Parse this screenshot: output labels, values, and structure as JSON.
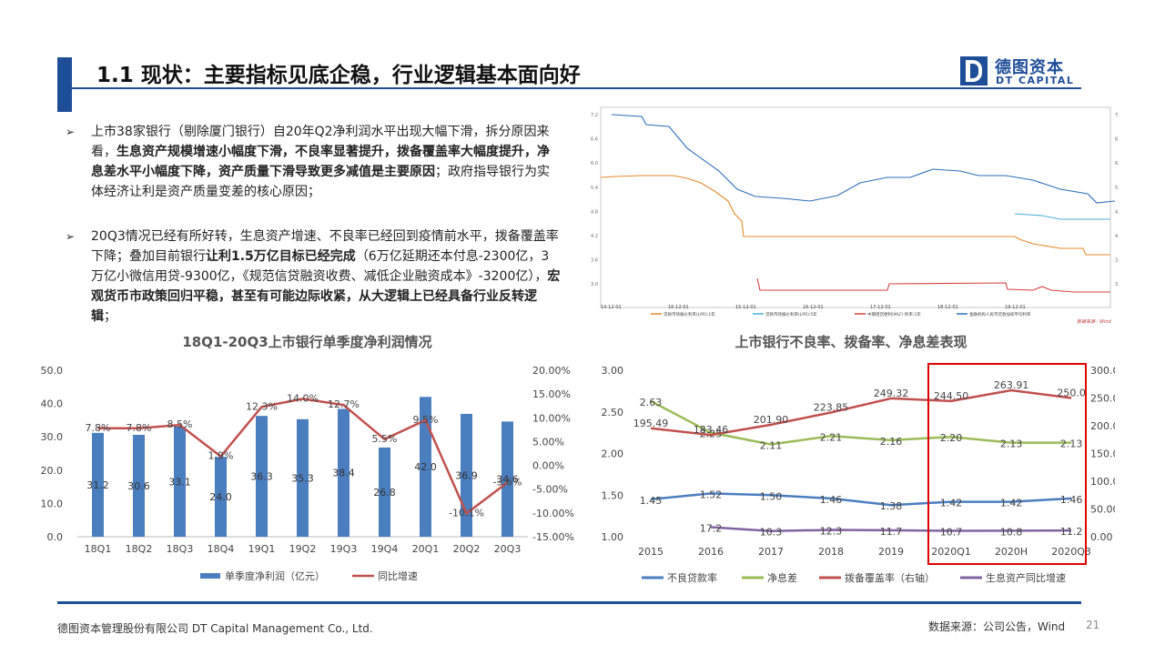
{
  "header": {
    "title": "1.1 现状：主要指标见底企稳，行业逻辑基本面向好",
    "logo_cn": "德图资本",
    "logo_en": "DT CAPITAL"
  },
  "bullets": [
    {
      "parts": [
        {
          "t": "上市38家银行（剔除厦门银行）自20年Q2净利润水平出现大幅下滑，拆分原因来看，",
          "b": false
        },
        {
          "t": "生息资产规模增速小幅度下滑，不良率显著提升，拨备覆盖率大幅度提升，净息差水平小幅度下降，资产质量下滑导致更多减值是主要原因",
          "b": true
        },
        {
          "t": "；政府指导银行为实体经济让利是资产质量变差的核心原因；",
          "b": false
        }
      ]
    },
    {
      "parts": [
        {
          "t": "20Q3情况已经有所好转，",
          "b": false
        },
        {
          "t": "生息资产增速、不良率已经回到疫情前水平，拨备覆盖率下降",
          "b": false
        },
        {
          "t": "；叠加目前银行",
          "b": false
        },
        {
          "t": "让利1.5万亿目标已经完成",
          "b": true
        },
        {
          "t": "（6万亿延期还本付息-2300亿，3万亿小微信用贷-9300亿，《规范信贷融资收费、减低企业融资成本》-3200亿），",
          "b": false
        },
        {
          "t": "宏观货币市政策回归平稳，甚至有可能边际收紧，从大逻辑上已经具备行业反转逻辑",
          "b": true
        },
        {
          "t": "；",
          "b": false
        }
      ]
    }
  ],
  "rate_chart": {
    "y_ticks": [
      "7.2",
      "6.6",
      "6.0",
      "5.4",
      "4.8",
      "4.2",
      "3.6",
      "3.0"
    ],
    "x_ticks": [
      "14-12-01",
      "16-12-01",
      "15-12-01",
      "16-12-01",
      "17-12-01",
      "18-12-01",
      "19-12-01"
    ],
    "legend": [
      "贷款市场报价利率(LPR):1年",
      "贷款市场报价利率(LPR):5年",
      "中期借贷便利(MLF):利率:1年",
      "金融机构人民币贷款加权平均利率"
    ],
    "source": "数据来源：Wind",
    "colors": [
      "#e08a2c",
      "#4bb0d6",
      "#d64040",
      "#2a6eb5"
    ]
  },
  "chart_data": [
    {
      "type": "bar",
      "title": "18Q1-20Q3上市银行单季度净利润情况",
      "categories": [
        "18Q1",
        "18Q2",
        "18Q3",
        "18Q4",
        "19Q1",
        "19Q2",
        "19Q3",
        "19Q4",
        "20Q1",
        "20Q2",
        "20Q3"
      ],
      "series": [
        {
          "name": "单季度净利润（亿元）",
          "axis": "left",
          "type": "bar",
          "color": "#4a7ebf",
          "values": [
            31.2,
            30.6,
            33.1,
            24.0,
            36.3,
            35.3,
            38.4,
            26.8,
            42.0,
            36.9,
            34.6
          ],
          "labels": [
            "31.2",
            "30.6",
            "33.1",
            "24.0",
            "36.3",
            "35.3",
            "38.4",
            "26.8",
            "42.0",
            "36.9",
            "34.6"
          ]
        },
        {
          "name": "同比增速",
          "axis": "right",
          "type": "line",
          "color": "#c0504d",
          "values": [
            7.8,
            7.8,
            8.5,
            1.9,
            12.3,
            14.0,
            12.7,
            5.5,
            9.5,
            -10.1,
            -3.6
          ],
          "labels": [
            "7.8%",
            "7.8%",
            "8.5%",
            "1.9%",
            "12.3%",
            "14.0%",
            "12.7%",
            "5.5%",
            "9.5%",
            "-10.1%",
            "-3.6%"
          ]
        }
      ],
      "ylim": [
        0,
        50
      ],
      "y_ticks": [
        "50.0",
        "40.0",
        "30.0",
        "20.0",
        "10.0",
        "0.0"
      ],
      "y2lim": [
        -15,
        20
      ],
      "y2_ticks": [
        "20.00%",
        "15.00%",
        "10.00%",
        "5.00%",
        "0.00%",
        "-5.00%",
        "-10.00%",
        "-15.00%"
      ],
      "legend": "bottom",
      "grid": false
    },
    {
      "type": "line",
      "title": "上市银行不良率、拨备率、净息差表现",
      "categories": [
        "2015",
        "2016",
        "2017",
        "2018",
        "2019",
        "2020Q1",
        "2020H",
        "2020Q3"
      ],
      "series": [
        {
          "name": "不良贷款率",
          "axis": "left",
          "color": "#4a7ebf",
          "values": [
            1.45,
            1.52,
            1.5,
            1.46,
            1.38,
            1.42,
            1.42,
            1.46
          ],
          "labels": [
            "1.45",
            "1.52",
            "1.50",
            "1.46",
            "1.38",
            "1.42",
            "1.42",
            "1.46"
          ]
        },
        {
          "name": "净息差",
          "axis": "left",
          "color": "#9bbb59",
          "values": [
            2.63,
            2.25,
            2.11,
            2.21,
            2.16,
            2.2,
            2.13,
            2.13
          ],
          "labels": [
            "2.63",
            "2.25",
            "2.11",
            "2.21",
            "2.16",
            "2.20",
            "2.13",
            "2.13"
          ]
        },
        {
          "name": "拨备覆盖率（右轴）",
          "axis": "right",
          "color": "#c0504d",
          "values": [
            195.49,
            183.46,
            201.9,
            223.85,
            249.32,
            244.5,
            263.91,
            250.0
          ],
          "labels": [
            "195.49",
            "183.46",
            "201.90",
            "223.85",
            "249.32",
            "244.50",
            "263.91",
            "250.0"
          ]
        },
        {
          "name": "生息资产同比增速",
          "axis": "right",
          "color": "#8064a2",
          "values": [
            null,
            17.2,
            10.3,
            12.3,
            11.7,
            10.7,
            10.8,
            11.2
          ],
          "labels": [
            "",
            "17.2",
            "10.3",
            "12.3",
            "11.7",
            "10.7",
            "10.8",
            "11.2"
          ]
        }
      ],
      "ylim": [
        1.0,
        3.0
      ],
      "y_ticks": [
        "3.00",
        "2.50",
        "2.00",
        "1.50",
        "1.00"
      ],
      "y2lim": [
        0,
        300
      ],
      "y2_ticks": [
        "300.00",
        "250.00",
        "200.00",
        "150.00",
        "100.00",
        "50.00",
        "0.00"
      ],
      "legend": "bottom",
      "highlight": "2020Q1-2020Q3",
      "grid": false
    }
  ],
  "footer": {
    "company": "德图资本管理股份有限公司 DT Capital Management Co., Ltd.",
    "source": "数据来源：公司公告，Wind",
    "page": "21"
  }
}
